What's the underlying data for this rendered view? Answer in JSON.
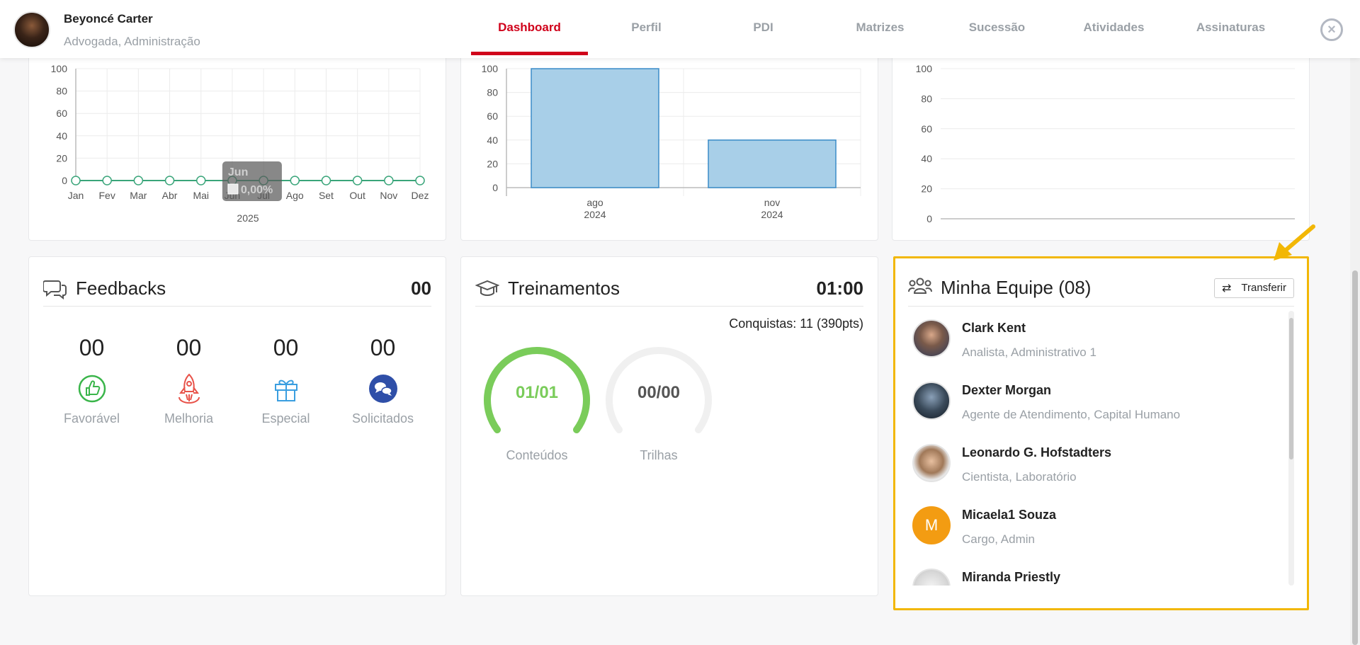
{
  "header": {
    "user_name": "Beyoncé Carter",
    "user_role": "Advogada, Administração",
    "tabs": [
      {
        "label": "Dashboard",
        "active": true
      },
      {
        "label": "Perfil",
        "active": false
      },
      {
        "label": "PDI",
        "active": false
      },
      {
        "label": "Matrizes",
        "active": false
      },
      {
        "label": "Sucessão",
        "active": false
      },
      {
        "label": "Atividades",
        "active": false
      },
      {
        "label": "Assinaturas",
        "active": false
      }
    ],
    "close_symbol": "×"
  },
  "chart_data": [
    {
      "type": "line",
      "categories": [
        "Jan",
        "Fev",
        "Mar",
        "Abr",
        "Mai",
        "Jun",
        "Jul",
        "Ago",
        "Set",
        "Out",
        "Nov",
        "Dez"
      ],
      "series": [
        {
          "values": [
            0,
            0,
            0,
            0,
            0,
            0,
            0,
            0,
            0,
            0,
            0,
            0
          ],
          "color": "#3aa57a"
        }
      ],
      "xlabel": "2025",
      "ylim": [
        0,
        100
      ],
      "yticks": [
        0,
        20,
        40,
        60,
        80,
        100
      ],
      "grid": true,
      "tooltip": {
        "title": "Jun",
        "value": "0,00%"
      }
    },
    {
      "type": "bar",
      "categories": [
        [
          "ago",
          "2024"
        ],
        [
          "nov",
          "2024"
        ]
      ],
      "values": [
        100,
        40
      ],
      "ylim": [
        0,
        100
      ],
      "yticks": [
        0,
        20,
        40,
        60,
        80,
        100
      ],
      "color": "#a8cfe8",
      "edge_color": "#3a8cc8"
    },
    {
      "type": "bar",
      "categories": [],
      "values": [],
      "ylim": [
        0,
        100
      ],
      "yticks": [
        0,
        20,
        40,
        60,
        80,
        100
      ]
    }
  ],
  "feedbacks": {
    "title": "Feedbacks",
    "total": "00",
    "items": [
      {
        "value": "00",
        "label": "Favorável",
        "icon": "thumbs-up-icon",
        "color": "#3ab54a"
      },
      {
        "value": "00",
        "label": "Melhoria",
        "icon": "rocket-icon",
        "color": "#e8534a"
      },
      {
        "value": "00",
        "label": "Especial",
        "icon": "gift-icon",
        "color": "#3a9ee0"
      },
      {
        "value": "00",
        "label": "Solicitados",
        "icon": "chat-bubbles-icon",
        "color": "#2f4fa8"
      }
    ]
  },
  "trainings": {
    "title": "Treinamentos",
    "total": "01:00",
    "achievements": "Conquistas: 11 (390pts)",
    "gauges": [
      {
        "value": "01/01",
        "label": "Conteúdos",
        "progress": 1.0,
        "color": "#7acc5a"
      },
      {
        "value": "00/00",
        "label": "Trilhas",
        "progress": 0.0,
        "color": "#555555"
      }
    ]
  },
  "team": {
    "title": "Minha Equipe (08)",
    "transfer_label": "Transferir",
    "members": [
      {
        "name": "Clark Kent",
        "role": "Analista, Administrativo 1",
        "avatar": "photo"
      },
      {
        "name": "Dexter Morgan",
        "role": "Agente de Atendimento, Capital Humano",
        "avatar": "photo"
      },
      {
        "name": "Leonardo G. Hofstadters",
        "role": "Cientista, Laboratório",
        "avatar": "photo"
      },
      {
        "name": "Micaela1 Souza",
        "role": "Cargo, Admin",
        "avatar": "initial",
        "initial": "M",
        "color": "#f39c12"
      },
      {
        "name": "Miranda Priestly",
        "role": "",
        "avatar": "photo"
      }
    ]
  },
  "colors": {
    "accent": "#d0021b",
    "highlight": "#f2b705"
  }
}
